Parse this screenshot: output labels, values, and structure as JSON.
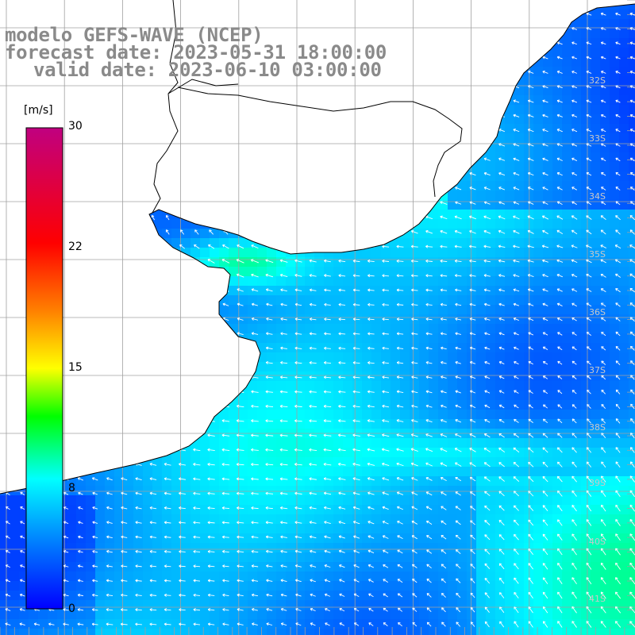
{
  "title": {
    "line1": "modelo GEFS-WAVE (NCEP)",
    "line2": "forecast date: 2023-05-31 18:00:00",
    "line3": "valid date: 2023-06-10 03:00:00"
  },
  "colorbar": {
    "unit": "[m/s]",
    "ticks": [
      "30",
      "22",
      "15",
      "8",
      "0"
    ],
    "tick_values": [
      30,
      22,
      15,
      8,
      0
    ],
    "min": 0,
    "max": 30,
    "colors": [
      "#0000ff",
      "#0080ff",
      "#00ffff",
      "#00ff00",
      "#ffff00",
      "#ff8000",
      "#ff0000",
      "#c00080"
    ]
  },
  "grid": {
    "lat_labels": [
      "32S",
      "33S",
      "34S",
      "35S",
      "36S",
      "37S",
      "38S",
      "39S",
      "40S",
      "41S"
    ]
  },
  "map": {
    "land_color": "#ffffff",
    "coastline_color": "#000000",
    "grid_color": "#a0a0a0",
    "arrow_color": "#ffffff"
  }
}
